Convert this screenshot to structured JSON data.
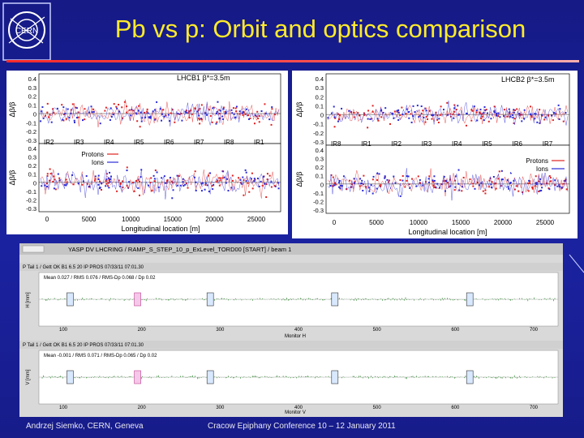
{
  "slide": {
    "title": "Pb vs p: Orbit and optics comparison",
    "footer_author": "Andrzej Siemko, CERN, Geneva",
    "footer_conference": "Cracow Epiphany Conference   10 – 12 January 2011",
    "logo_text": "CERN"
  },
  "left_plot": {
    "top_label": "LHCB1 β*=3.5m",
    "upper_ylabel": "Δβ/β",
    "lower_ylabel": "Δβ/β",
    "xlabel": "Longitudinal location [m]",
    "upper_yticks": [
      "0.4",
      "0.3",
      "0.2",
      "0.1",
      "0",
      "-0.1",
      "-0.2",
      "-0.3"
    ],
    "lower_yticks": [
      "0.4",
      "0.3",
      "0.2",
      "0.1",
      "0",
      "-0.1",
      "-0.2",
      "-0.3"
    ],
    "ip_labels": [
      "IR2",
      "IR3",
      "IR4",
      "IR5",
      "IR6",
      "IR7",
      "IR8",
      "IR1"
    ],
    "xticks": [
      "0",
      "5000",
      "10000",
      "15000",
      "20000",
      "25000"
    ],
    "legend": [
      "Protons",
      "Ions"
    ]
  },
  "right_plot": {
    "top_label": "LHCB2 β*=3.5m",
    "upper_ylabel": "Δβ/β",
    "lower_ylabel": "Δβ/β",
    "xlabel": "Longitudinal location [m]",
    "upper_yticks": [
      "0.4",
      "0.3",
      "0.2",
      "0.1",
      "0",
      "-0.1",
      "-0.2",
      "-0.3"
    ],
    "lower_yticks": [
      "0.4",
      "0.3",
      "0.2",
      "0.1",
      "0",
      "-0.1",
      "-0.2",
      "-0.3"
    ],
    "ip_labels": [
      "IR8",
      "IR1",
      "IR2",
      "IR3",
      "IR4",
      "IR5",
      "IR6",
      "IR7"
    ],
    "xticks": [
      "0",
      "5000",
      "10000",
      "15000",
      "20000",
      "25000"
    ],
    "legend": [
      "Protons",
      "Ions"
    ]
  },
  "orbit_display": {
    "window_title": "YASP DV LHCRING / RAMP_S_STEP_10_p_ExLevel_TORD00 [START] / beam 1",
    "upper": {
      "toolbar": "P Tail 1 / Gett  OK  B1 6.5 20 IP PROS  07/33/11 07:01.30",
      "stats": "Mean   0.027 / RMS   0.076 / RMS-Dp   0.068 / Dp   0.02",
      "ylabel": "H [mm]",
      "xlabel": "Monitor H"
    },
    "lower": {
      "toolbar": "P Tail 1 / Gett  OK  B1 6.5 20 IP PROS  07/33/11 07:01.30",
      "stats": "Mean  -0.001 / RMS   0.071 / RMS-Dp   0.065 / Dp   0.02",
      "ylabel": "V [mm]",
      "xlabel": "Monitor V"
    },
    "xticks": [
      "100",
      "200",
      "300",
      "400",
      "500",
      "600",
      "700"
    ]
  },
  "colors": {
    "background": "#1a1f8e",
    "title": "#ffeb2a",
    "rule": "#ff3333",
    "protons": "#e02020",
    "ions": "#2a2ad8"
  }
}
